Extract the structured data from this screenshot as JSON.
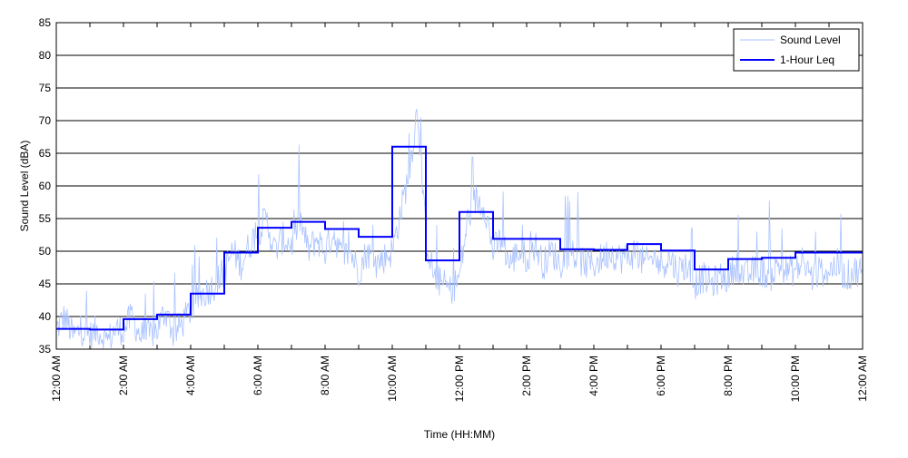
{
  "chart_data": {
    "type": "line",
    "title": "",
    "xlabel": "Time (HH:MM)",
    "ylabel": "Sound Level (dBA)",
    "ylim": [
      35,
      85
    ],
    "yticks": [
      35,
      40,
      45,
      50,
      55,
      60,
      65,
      70,
      75,
      80,
      85
    ],
    "xlim_hours": [
      0,
      24
    ],
    "xtick_labels": [
      "12:00 AM",
      "2:00 AM",
      "4:00 AM",
      "6:00 AM",
      "8:00 AM",
      "10:00 AM",
      "12:00 PM",
      "2:00 PM",
      "4:00 PM",
      "6:00 PM",
      "8:00 PM",
      "10:00 PM",
      "12:00 AM"
    ],
    "grid": "horizontal",
    "legend_position": "top-right",
    "series": [
      {
        "name": "Sound Level",
        "color": "#a9c2ff",
        "sample_interval_minutes": 15,
        "values": [
          38,
          40,
          37,
          38,
          37,
          38,
          36,
          38,
          38,
          40,
          37,
          37,
          38,
          41,
          37,
          39,
          41,
          43,
          44,
          45,
          47,
          50,
          48,
          51,
          53,
          55,
          50,
          52,
          51,
          55,
          50,
          52,
          50,
          53,
          49,
          50,
          47,
          50,
          48,
          49,
          50,
          56,
          62,
          72,
          52,
          46,
          45,
          44,
          46,
          55,
          58,
          57,
          50,
          52,
          48,
          50,
          49,
          51,
          48,
          50,
          48,
          50,
          49,
          48,
          48,
          49,
          50,
          49,
          49,
          50,
          48,
          49,
          48,
          49,
          47,
          48,
          45,
          46,
          45,
          46,
          46,
          48,
          46,
          47,
          47,
          46,
          48,
          47,
          47,
          48,
          46,
          47,
          47,
          48,
          46,
          47
        ]
      },
      {
        "name": "1-Hour Leq",
        "color": "#0000ff",
        "step": "hourly",
        "values": [
          38.1,
          38.0,
          39.6,
          40.3,
          43.5,
          49.8,
          53.6,
          54.5,
          53.4,
          52.2,
          66.0,
          48.6,
          56.0,
          51.9,
          51.9,
          50.3,
          50.2,
          51.1,
          50.1,
          47.2,
          48.8,
          49.0,
          49.8,
          49.8
        ]
      }
    ]
  }
}
